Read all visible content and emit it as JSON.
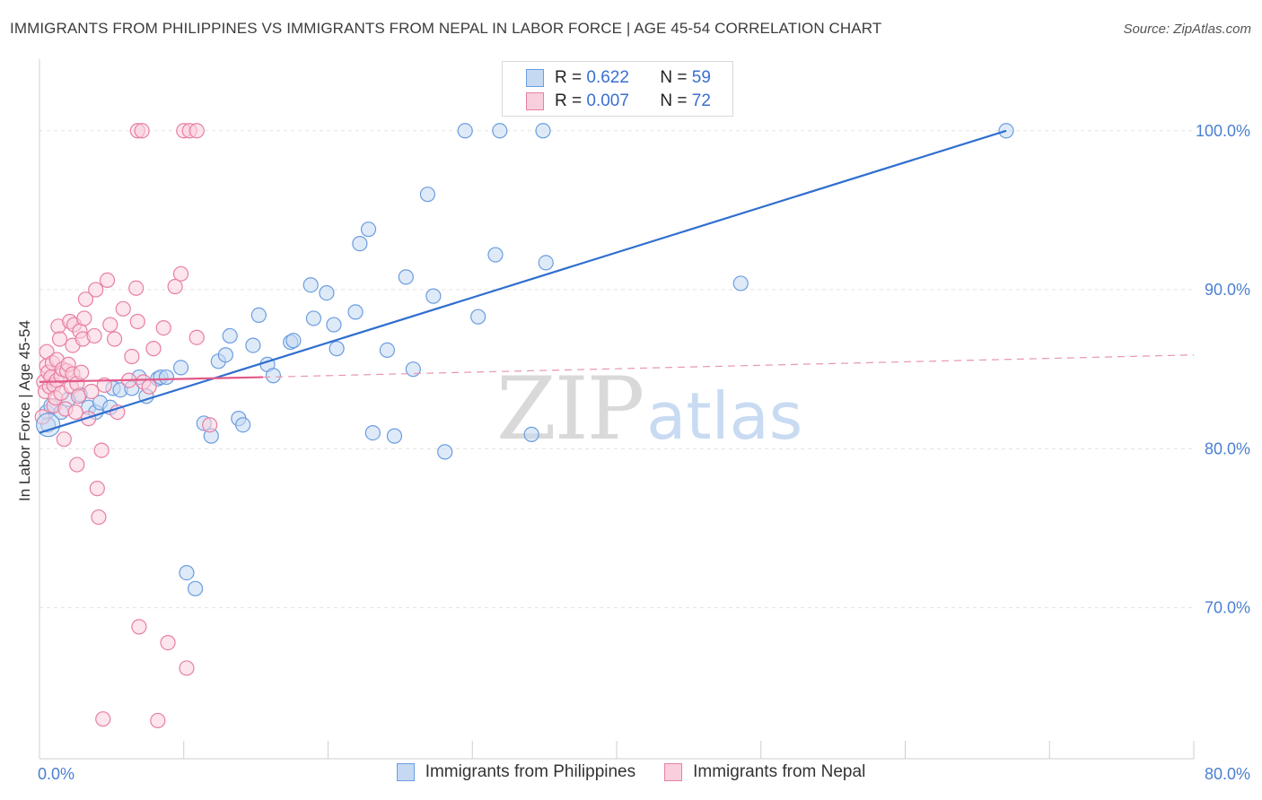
{
  "chart_data": {
    "type": "scatter",
    "title": "IMMIGRANTS FROM PHILIPPINES VS IMMIGRANTS FROM NEPAL IN LABOR FORCE | AGE 45-54 CORRELATION CHART",
    "source": "Source: ZipAtlas.com",
    "xlabel": "",
    "ylabel": "In Labor Force | Age 45-54",
    "xlim": [
      0,
      80
    ],
    "ylim": [
      60.5,
      104.5
    ],
    "x_tick_labels": [
      {
        "value": 0,
        "label": "0.0%"
      },
      {
        "value": 80,
        "label": "80.0%"
      }
    ],
    "y_tick_labels": [
      {
        "value": 70,
        "label": "70.0%"
      },
      {
        "value": 80,
        "label": "80.0%"
      },
      {
        "value": 90,
        "label": "90.0%"
      },
      {
        "value": 100,
        "label": "100.0%"
      }
    ],
    "grid": true,
    "legend_position": "top-center",
    "watermark": {
      "zip": "ZIP",
      "atlas": "atlas"
    },
    "series": [
      {
        "name": "Immigrants from Philippines",
        "r_label": "R =",
        "r_value": "0.622",
        "n_label": "N =",
        "n_value": "59",
        "color": "#6b9de0",
        "fill": "#c5d9f3",
        "trend": {
          "x": [
            0.0,
            67.0
          ],
          "y": [
            81.0,
            100.0
          ],
          "style": "solid"
        },
        "points": [
          [
            0.5,
            82.3
          ],
          [
            0.8,
            82.7
          ],
          [
            1.5,
            82.3
          ],
          [
            2.0,
            83.1
          ],
          [
            2.8,
            83.4
          ],
          [
            3.4,
            82.6
          ],
          [
            3.9,
            82.3
          ],
          [
            4.2,
            82.9
          ],
          [
            4.9,
            82.6
          ],
          [
            5.1,
            83.8
          ],
          [
            5.6,
            83.7
          ],
          [
            6.4,
            83.8
          ],
          [
            6.9,
            84.5
          ],
          [
            7.4,
            83.3
          ],
          [
            8.2,
            84.4
          ],
          [
            8.4,
            84.5
          ],
          [
            8.8,
            84.5
          ],
          [
            9.8,
            85.1
          ],
          [
            10.2,
            72.2
          ],
          [
            10.8,
            71.2
          ],
          [
            11.4,
            81.6
          ],
          [
            11.9,
            80.8
          ],
          [
            12.4,
            85.5
          ],
          [
            12.9,
            85.9
          ],
          [
            13.2,
            87.1
          ],
          [
            13.8,
            81.9
          ],
          [
            14.1,
            81.5
          ],
          [
            14.8,
            86.5
          ],
          [
            15.2,
            88.4
          ],
          [
            15.8,
            85.3
          ],
          [
            16.2,
            84.6
          ],
          [
            17.4,
            86.7
          ],
          [
            17.6,
            86.8
          ],
          [
            18.8,
            90.3
          ],
          [
            19.0,
            88.2
          ],
          [
            19.9,
            89.8
          ],
          [
            20.4,
            87.8
          ],
          [
            20.6,
            86.3
          ],
          [
            21.9,
            88.6
          ],
          [
            22.2,
            92.9
          ],
          [
            22.8,
            93.8
          ],
          [
            23.1,
            81.0
          ],
          [
            24.1,
            86.2
          ],
          [
            24.6,
            80.8
          ],
          [
            25.4,
            90.8
          ],
          [
            25.9,
            85.0
          ],
          [
            26.9,
            96.0
          ],
          [
            27.3,
            89.6
          ],
          [
            28.1,
            79.8
          ],
          [
            29.5,
            100.0
          ],
          [
            30.4,
            88.3
          ],
          [
            31.9,
            100.0
          ],
          [
            31.6,
            92.2
          ],
          [
            34.1,
            80.9
          ],
          [
            35.1,
            91.7
          ],
          [
            48.6,
            90.4
          ],
          [
            67.0,
            100.0
          ],
          [
            34.9,
            100.0
          ],
          [
            0.6,
            81.5
          ]
        ]
      },
      {
        "name": "Immigrants from Nepal",
        "r_label": "R =",
        "r_value": "0.007",
        "n_label": "N =",
        "n_value": "72",
        "color": "#e87fa3",
        "fill": "#f9cfdd",
        "trend": {
          "x": [
            0.0,
            15.5
          ],
          "y": [
            84.2,
            84.5
          ],
          "style": "solid"
        },
        "trend_extension": {
          "x": [
            15.5,
            80.0
          ],
          "y": [
            84.5,
            85.9
          ],
          "style": "dashed"
        },
        "points": [
          [
            0.3,
            84.2
          ],
          [
            0.4,
            83.6
          ],
          [
            0.5,
            85.2
          ],
          [
            0.5,
            86.1
          ],
          [
            0.6,
            84.8
          ],
          [
            0.7,
            83.9
          ],
          [
            0.8,
            84.5
          ],
          [
            0.9,
            85.4
          ],
          [
            1.0,
            82.7
          ],
          [
            1.0,
            84.0
          ],
          [
            1.1,
            83.2
          ],
          [
            1.2,
            85.6
          ],
          [
            1.2,
            84.3
          ],
          [
            1.3,
            87.7
          ],
          [
            1.4,
            86.9
          ],
          [
            1.5,
            84.6
          ],
          [
            1.5,
            83.5
          ],
          [
            1.6,
            85.0
          ],
          [
            1.7,
            80.6
          ],
          [
            1.8,
            82.5
          ],
          [
            1.9,
            84.9
          ],
          [
            2.0,
            85.3
          ],
          [
            2.1,
            88.0
          ],
          [
            2.2,
            83.9
          ],
          [
            2.3,
            84.7
          ],
          [
            2.3,
            86.5
          ],
          [
            2.4,
            87.8
          ],
          [
            2.5,
            82.3
          ],
          [
            2.6,
            84.1
          ],
          [
            2.7,
            83.3
          ],
          [
            2.8,
            87.4
          ],
          [
            2.9,
            84.8
          ],
          [
            3.0,
            86.9
          ],
          [
            3.1,
            88.2
          ],
          [
            3.2,
            89.4
          ],
          [
            3.4,
            81.9
          ],
          [
            3.6,
            83.6
          ],
          [
            3.8,
            87.1
          ],
          [
            3.9,
            90.0
          ],
          [
            4.0,
            77.5
          ],
          [
            4.1,
            75.7
          ],
          [
            4.3,
            79.9
          ],
          [
            4.5,
            84.0
          ],
          [
            4.7,
            90.6
          ],
          [
            4.9,
            87.8
          ],
          [
            5.2,
            86.9
          ],
          [
            5.4,
            82.3
          ],
          [
            5.8,
            88.8
          ],
          [
            6.2,
            84.3
          ],
          [
            6.4,
            85.8
          ],
          [
            6.7,
            90.1
          ],
          [
            6.8,
            88.0
          ],
          [
            6.9,
            68.8
          ],
          [
            7.2,
            84.2
          ],
          [
            7.6,
            83.9
          ],
          [
            7.9,
            86.3
          ],
          [
            8.2,
            62.9
          ],
          [
            8.6,
            87.6
          ],
          [
            8.9,
            67.8
          ],
          [
            9.4,
            90.2
          ],
          [
            9.8,
            91.0
          ],
          [
            10.2,
            66.2
          ],
          [
            10.9,
            87.0
          ],
          [
            11.8,
            81.5
          ],
          [
            6.8,
            100.0
          ],
          [
            7.1,
            100.0
          ],
          [
            10.0,
            100.0
          ],
          [
            10.4,
            100.0
          ],
          [
            10.9,
            100.0
          ],
          [
            4.4,
            63.0
          ],
          [
            2.6,
            79.0
          ],
          [
            0.2,
            82.0
          ]
        ]
      }
    ]
  }
}
